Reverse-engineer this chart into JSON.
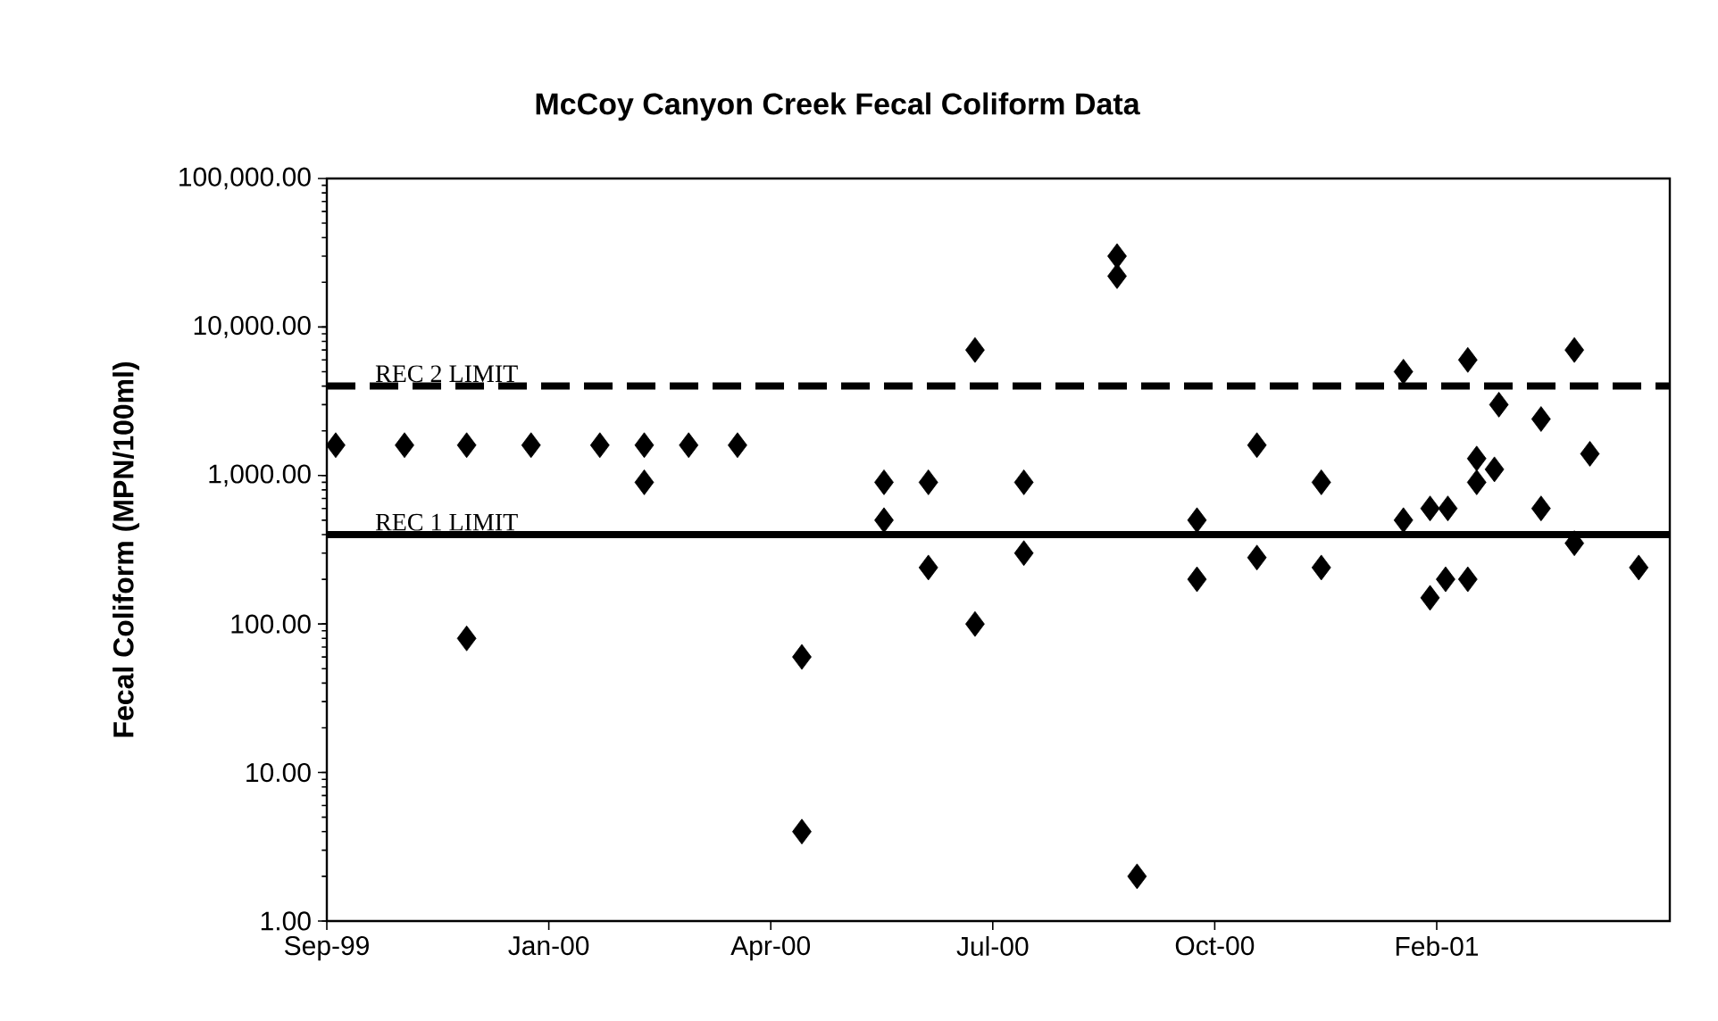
{
  "chart_data": {
    "type": "scatter",
    "title": "McCoy Canyon Creek Fecal Coliform Data",
    "ylabel": "Fecal Coliform (MPN/100ml)",
    "xticks": [
      {
        "value": "1999-09-25",
        "label": "Sep-99"
      },
      {
        "value": "2000-01-03",
        "label": "Jan-00"
      },
      {
        "value": "2000-04-12",
        "label": "Apr-00"
      },
      {
        "value": "2000-07-21",
        "label": "Jul-00"
      },
      {
        "value": "2000-10-29",
        "label": "Oct-00"
      },
      {
        "value": "2001-02-06",
        "label": "Feb-01"
      }
    ],
    "xlim": [
      "1999-09-25",
      "2001-05-22"
    ],
    "ylim": [
      1,
      100000
    ],
    "log": "y",
    "yticks": [
      {
        "value": 1,
        "label": "1.00"
      },
      {
        "value": 10,
        "label": "10.00"
      },
      {
        "value": 100,
        "label": "100.00"
      },
      {
        "value": 1000,
        "label": "1,000.00"
      },
      {
        "value": 10000,
        "label": "10,000.00"
      },
      {
        "value": 100000,
        "label": "100,000.00"
      }
    ],
    "marker": "diamond",
    "series": [
      {
        "color": "#000000",
        "x": [
          "1999-09-29",
          "1999-10-30",
          "1999-11-27",
          "1999-11-27",
          "1999-12-26",
          "2000-01-26",
          "2000-02-15",
          "2000-02-15",
          "2000-03-06",
          "2000-03-28",
          "2000-04-26",
          "2000-04-26",
          "2000-06-02",
          "2000-06-02",
          "2000-06-22",
          "2000-06-22",
          "2000-07-13",
          "2000-07-13",
          "2000-08-04",
          "2000-08-04",
          "2000-09-15",
          "2000-09-15",
          "2000-09-24",
          "2000-10-21",
          "2000-10-21",
          "2000-11-17",
          "2000-11-17",
          "2000-12-16",
          "2000-12-16",
          "2001-01-22",
          "2001-01-22",
          "2001-02-03",
          "2001-02-03",
          "2001-02-11",
          "2001-02-10",
          "2001-02-20",
          "2001-02-20",
          "2001-03-06",
          "2001-02-24",
          "2001-03-04",
          "2001-02-24",
          "2001-03-25",
          "2001-03-25",
          "2001-04-09",
          "2001-04-09",
          "2001-04-16",
          "2001-05-08"
        ],
        "values": [
          1600,
          1600,
          1600,
          80,
          1600,
          1600,
          1600,
          900,
          1600,
          1600,
          60,
          4,
          900,
          500,
          900,
          240,
          7000,
          100,
          900,
          300,
          30000,
          22000,
          2,
          500,
          200,
          1600,
          280,
          900,
          240,
          5000,
          500,
          600,
          150,
          600,
          200,
          200,
          6000,
          3000,
          1300,
          1100,
          900,
          2400,
          600,
          7000,
          350,
          1400,
          240
        ]
      }
    ],
    "ref_lines": [
      {
        "axis": "y",
        "value": 4000,
        "label": "REC 2 LIMIT",
        "color": "#000000",
        "line_style": "dashed"
      },
      {
        "axis": "y",
        "value": 400,
        "label": "REC 1 LIMIT",
        "color": "#000000",
        "line_style": "solid"
      }
    ]
  }
}
